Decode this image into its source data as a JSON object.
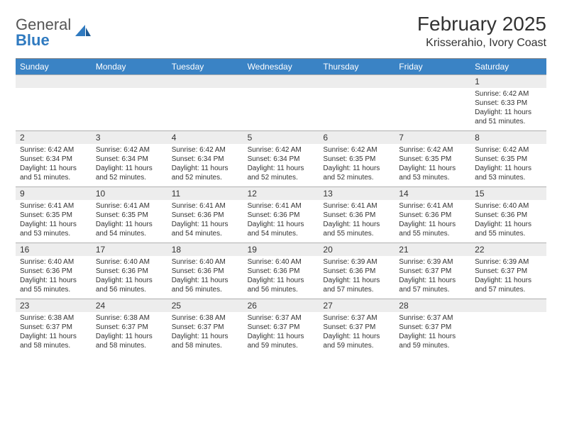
{
  "logo": {
    "general": "General",
    "blue": "Blue"
  },
  "header": {
    "month_title": "February 2025",
    "location": "Krisserahio, Ivory Coast"
  },
  "colors": {
    "header_bar": "#3a83c5",
    "daynum_bg": "#ededed",
    "rule": "#b0b0b0",
    "text": "#333333",
    "logo_gray": "#555555",
    "logo_blue": "#2f7ac0"
  },
  "day_names": [
    "Sunday",
    "Monday",
    "Tuesday",
    "Wednesday",
    "Thursday",
    "Friday",
    "Saturday"
  ],
  "weeks": [
    [
      {
        "day": "",
        "lines": []
      },
      {
        "day": "",
        "lines": []
      },
      {
        "day": "",
        "lines": []
      },
      {
        "day": "",
        "lines": []
      },
      {
        "day": "",
        "lines": []
      },
      {
        "day": "",
        "lines": []
      },
      {
        "day": "1",
        "lines": [
          "Sunrise: 6:42 AM",
          "Sunset: 6:33 PM",
          "Daylight: 11 hours and 51 minutes."
        ]
      }
    ],
    [
      {
        "day": "2",
        "lines": [
          "Sunrise: 6:42 AM",
          "Sunset: 6:34 PM",
          "Daylight: 11 hours and 51 minutes."
        ]
      },
      {
        "day": "3",
        "lines": [
          "Sunrise: 6:42 AM",
          "Sunset: 6:34 PM",
          "Daylight: 11 hours and 52 minutes."
        ]
      },
      {
        "day": "4",
        "lines": [
          "Sunrise: 6:42 AM",
          "Sunset: 6:34 PM",
          "Daylight: 11 hours and 52 minutes."
        ]
      },
      {
        "day": "5",
        "lines": [
          "Sunrise: 6:42 AM",
          "Sunset: 6:34 PM",
          "Daylight: 11 hours and 52 minutes."
        ]
      },
      {
        "day": "6",
        "lines": [
          "Sunrise: 6:42 AM",
          "Sunset: 6:35 PM",
          "Daylight: 11 hours and 52 minutes."
        ]
      },
      {
        "day": "7",
        "lines": [
          "Sunrise: 6:42 AM",
          "Sunset: 6:35 PM",
          "Daylight: 11 hours and 53 minutes."
        ]
      },
      {
        "day": "8",
        "lines": [
          "Sunrise: 6:42 AM",
          "Sunset: 6:35 PM",
          "Daylight: 11 hours and 53 minutes."
        ]
      }
    ],
    [
      {
        "day": "9",
        "lines": [
          "Sunrise: 6:41 AM",
          "Sunset: 6:35 PM",
          "Daylight: 11 hours and 53 minutes."
        ]
      },
      {
        "day": "10",
        "lines": [
          "Sunrise: 6:41 AM",
          "Sunset: 6:35 PM",
          "Daylight: 11 hours and 54 minutes."
        ]
      },
      {
        "day": "11",
        "lines": [
          "Sunrise: 6:41 AM",
          "Sunset: 6:36 PM",
          "Daylight: 11 hours and 54 minutes."
        ]
      },
      {
        "day": "12",
        "lines": [
          "Sunrise: 6:41 AM",
          "Sunset: 6:36 PM",
          "Daylight: 11 hours and 54 minutes."
        ]
      },
      {
        "day": "13",
        "lines": [
          "Sunrise: 6:41 AM",
          "Sunset: 6:36 PM",
          "Daylight: 11 hours and 55 minutes."
        ]
      },
      {
        "day": "14",
        "lines": [
          "Sunrise: 6:41 AM",
          "Sunset: 6:36 PM",
          "Daylight: 11 hours and 55 minutes."
        ]
      },
      {
        "day": "15",
        "lines": [
          "Sunrise: 6:40 AM",
          "Sunset: 6:36 PM",
          "Daylight: 11 hours and 55 minutes."
        ]
      }
    ],
    [
      {
        "day": "16",
        "lines": [
          "Sunrise: 6:40 AM",
          "Sunset: 6:36 PM",
          "Daylight: 11 hours and 55 minutes."
        ]
      },
      {
        "day": "17",
        "lines": [
          "Sunrise: 6:40 AM",
          "Sunset: 6:36 PM",
          "Daylight: 11 hours and 56 minutes."
        ]
      },
      {
        "day": "18",
        "lines": [
          "Sunrise: 6:40 AM",
          "Sunset: 6:36 PM",
          "Daylight: 11 hours and 56 minutes."
        ]
      },
      {
        "day": "19",
        "lines": [
          "Sunrise: 6:40 AM",
          "Sunset: 6:36 PM",
          "Daylight: 11 hours and 56 minutes."
        ]
      },
      {
        "day": "20",
        "lines": [
          "Sunrise: 6:39 AM",
          "Sunset: 6:36 PM",
          "Daylight: 11 hours and 57 minutes."
        ]
      },
      {
        "day": "21",
        "lines": [
          "Sunrise: 6:39 AM",
          "Sunset: 6:37 PM",
          "Daylight: 11 hours and 57 minutes."
        ]
      },
      {
        "day": "22",
        "lines": [
          "Sunrise: 6:39 AM",
          "Sunset: 6:37 PM",
          "Daylight: 11 hours and 57 minutes."
        ]
      }
    ],
    [
      {
        "day": "23",
        "lines": [
          "Sunrise: 6:38 AM",
          "Sunset: 6:37 PM",
          "Daylight: 11 hours and 58 minutes."
        ]
      },
      {
        "day": "24",
        "lines": [
          "Sunrise: 6:38 AM",
          "Sunset: 6:37 PM",
          "Daylight: 11 hours and 58 minutes."
        ]
      },
      {
        "day": "25",
        "lines": [
          "Sunrise: 6:38 AM",
          "Sunset: 6:37 PM",
          "Daylight: 11 hours and 58 minutes."
        ]
      },
      {
        "day": "26",
        "lines": [
          "Sunrise: 6:37 AM",
          "Sunset: 6:37 PM",
          "Daylight: 11 hours and 59 minutes."
        ]
      },
      {
        "day": "27",
        "lines": [
          "Sunrise: 6:37 AM",
          "Sunset: 6:37 PM",
          "Daylight: 11 hours and 59 minutes."
        ]
      },
      {
        "day": "28",
        "lines": [
          "Sunrise: 6:37 AM",
          "Sunset: 6:37 PM",
          "Daylight: 11 hours and 59 minutes."
        ]
      },
      {
        "day": "",
        "lines": []
      }
    ]
  ]
}
